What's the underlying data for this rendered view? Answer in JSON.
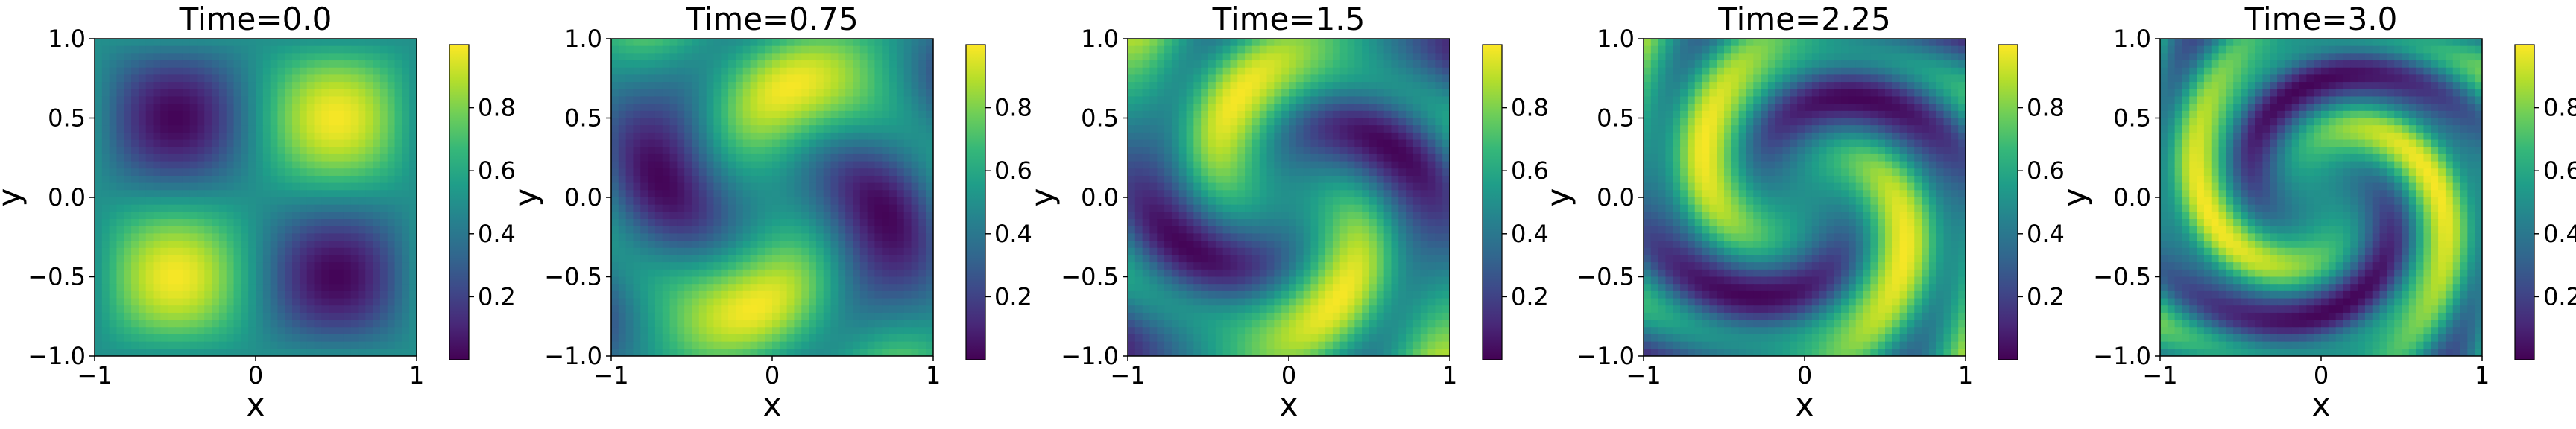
{
  "figure": {
    "colormap": "viridis",
    "colormap_stops": [
      "#440154",
      "#482878",
      "#3e4989",
      "#31688e",
      "#26828e",
      "#1f9e89",
      "#35b779",
      "#6ece58",
      "#b5de2b",
      "#fde725"
    ]
  },
  "chart_data": [
    {
      "type": "heatmap",
      "title": "Time=0.0",
      "time": 0.0,
      "xlabel": "x",
      "ylabel": "y",
      "xlim": [
        -1,
        1
      ],
      "ylim": [
        -1,
        1
      ],
      "xticks": [
        "−1",
        "0",
        "1"
      ],
      "yticks": [
        "−1.0",
        "−0.5",
        "0.0",
        "0.5",
        "1.0"
      ],
      "colorbar_ticks": [
        "0.2",
        "0.4",
        "0.6",
        "0.8"
      ],
      "value_range": [
        0.0,
        1.0
      ]
    },
    {
      "type": "heatmap",
      "title": "Time=0.75",
      "time": 0.75,
      "xlabel": "x",
      "ylabel": "y",
      "xlim": [
        -1,
        1
      ],
      "ylim": [
        -1,
        1
      ],
      "xticks": [
        "−1",
        "0",
        "1"
      ],
      "yticks": [
        "−1.0",
        "−0.5",
        "0.0",
        "0.5",
        "1.0"
      ],
      "colorbar_ticks": [
        "0.2",
        "0.4",
        "0.6",
        "0.8"
      ],
      "value_range": [
        0.0,
        1.0
      ]
    },
    {
      "type": "heatmap",
      "title": "Time=1.5",
      "time": 1.5,
      "xlabel": "x",
      "ylabel": "y",
      "xlim": [
        -1,
        1
      ],
      "ylim": [
        -1,
        1
      ],
      "xticks": [
        "−1",
        "0",
        "1"
      ],
      "yticks": [
        "−1.0",
        "−0.5",
        "0.0",
        "0.5",
        "1.0"
      ],
      "colorbar_ticks": [
        "0.2",
        "0.4",
        "0.6",
        "0.8"
      ],
      "value_range": [
        0.0,
        1.0
      ]
    },
    {
      "type": "heatmap",
      "title": "Time=2.25",
      "time": 2.25,
      "xlabel": "x",
      "ylabel": "y",
      "xlim": [
        -1,
        1
      ],
      "ylim": [
        -1,
        1
      ],
      "xticks": [
        "−1",
        "0",
        "1"
      ],
      "yticks": [
        "−1.0",
        "−0.5",
        "0.0",
        "0.5",
        "1.0"
      ],
      "colorbar_ticks": [
        "0.2",
        "0.4",
        "0.6",
        "0.8"
      ],
      "value_range": [
        0.0,
        1.0
      ]
    },
    {
      "type": "heatmap",
      "title": "Time=3.0",
      "time": 3.0,
      "xlabel": "x",
      "ylabel": "y",
      "xlim": [
        -1,
        1
      ],
      "ylim": [
        -1,
        1
      ],
      "xticks": [
        "−1",
        "0",
        "1"
      ],
      "yticks": [
        "−1.0",
        "−0.5",
        "0.0",
        "0.5",
        "1.0"
      ],
      "colorbar_ticks": [
        "0.2",
        "0.4",
        "0.6",
        "0.8"
      ],
      "value_range": [
        0.0,
        1.0
      ]
    }
  ]
}
